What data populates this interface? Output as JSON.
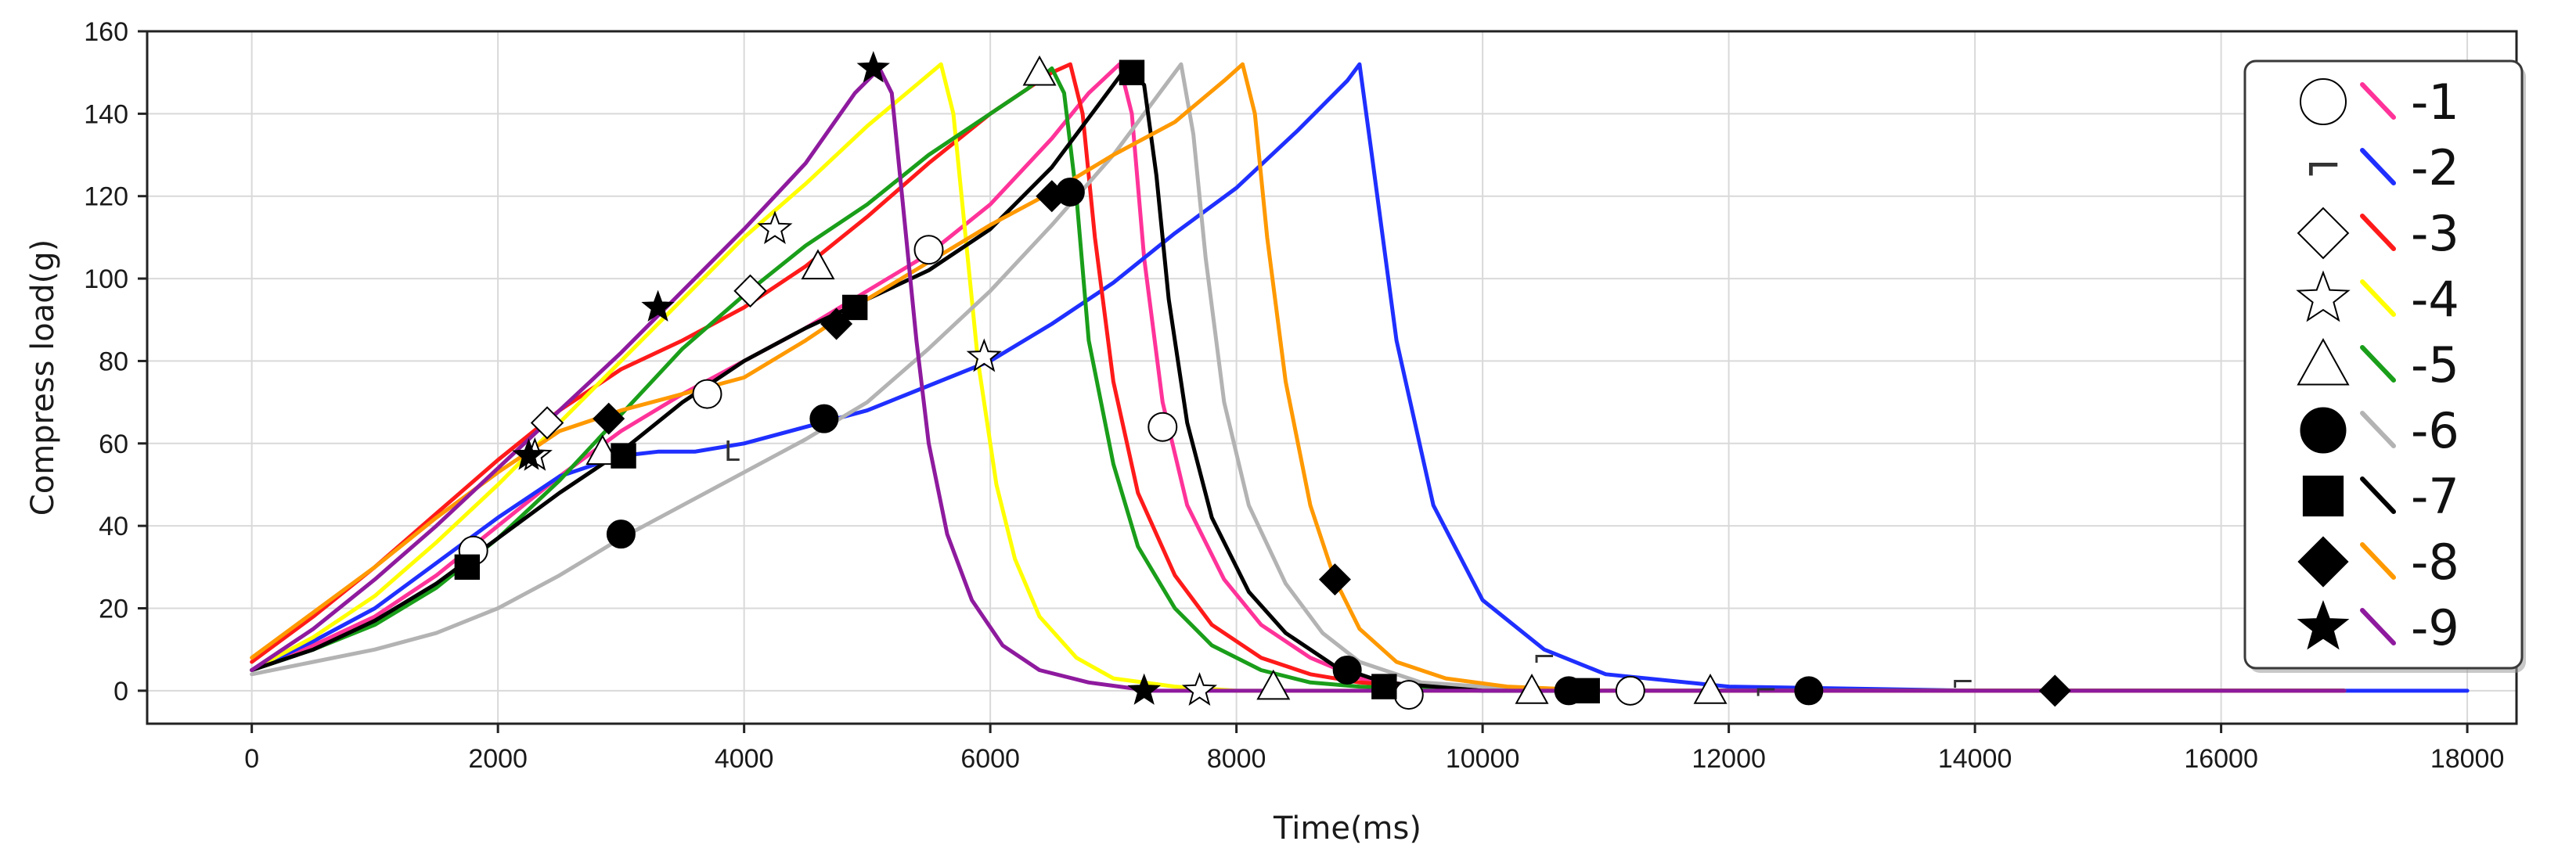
{
  "chart_data": {
    "type": "line",
    "title": "",
    "xlabel": "Time(ms)",
    "ylabel": "Compress load(g)",
    "xlim": [
      -850,
      18400
    ],
    "ylim": [
      -8,
      160
    ],
    "xticks": [
      0,
      2000,
      4000,
      6000,
      8000,
      10000,
      12000,
      14000,
      16000,
      18000
    ],
    "yticks": [
      0,
      20,
      40,
      60,
      80,
      100,
      120,
      140,
      160
    ],
    "grid": true,
    "legend_position": "top-right",
    "series": [
      {
        "name": "-1",
        "color": "#ff3399",
        "marker": "circle-open",
        "x": [
          0,
          500,
          1000,
          1500,
          2000,
          2500,
          3000,
          3500,
          4000,
          4500,
          5000,
          5500,
          6000,
          6500,
          6800,
          7050,
          7150,
          7250,
          7400,
          7600,
          7900,
          8200,
          8600,
          9000,
          9500,
          10000,
          11000,
          12000,
          14000,
          16000,
          17000
        ],
        "y": [
          5,
          11,
          18,
          28,
          40,
          52,
          63,
          72,
          80,
          88,
          97,
          106,
          118,
          134,
          145,
          152,
          140,
          105,
          70,
          45,
          27,
          16,
          8,
          3,
          1,
          0,
          0,
          0,
          0,
          0,
          0
        ],
        "marker_x": [
          1800,
          3700,
          5500,
          7400,
          9400,
          11200
        ],
        "marker_y": [
          34,
          72,
          107,
          64,
          -1,
          0
        ]
      },
      {
        "name": "-2",
        "color": "#1f2fff",
        "marker": "dash",
        "x": [
          0,
          500,
          1000,
          1500,
          2000,
          2500,
          3000,
          3300,
          3600,
          4000,
          4500,
          5000,
          5500,
          6000,
          6500,
          7000,
          7500,
          8000,
          8500,
          8900,
          9000,
          9100,
          9300,
          9600,
          10000,
          10500,
          11000,
          12000,
          14000,
          16000,
          18000
        ],
        "y": [
          5,
          12,
          20,
          31,
          42,
          52,
          57,
          58,
          58,
          60,
          64,
          68,
          74,
          80,
          89,
          99,
          111,
          122,
          136,
          148,
          152,
          130,
          85,
          45,
          22,
          10,
          4,
          1,
          0,
          0,
          0
        ],
        "marker_x": [
          3900,
          10500,
          12300,
          13900
        ],
        "marker_y": [
          58,
          8,
          0,
          2
        ],
        "marker_labels": [
          "L",
          "⌐",
          "⌐",
          "⌐"
        ]
      },
      {
        "name": "-3",
        "color": "#ff1a1a",
        "marker": "diamond-open",
        "x": [
          0,
          500,
          1000,
          1500,
          2000,
          2500,
          3000,
          3500,
          4000,
          4500,
          5000,
          5500,
          6000,
          6300,
          6500,
          6650,
          6750,
          6850,
          7000,
          7200,
          7500,
          7800,
          8200,
          8600,
          9000,
          10000,
          11000,
          12000,
          14000,
          16000,
          17000
        ],
        "y": [
          7,
          18,
          30,
          43,
          56,
          68,
          78,
          85,
          93,
          103,
          115,
          128,
          140,
          146,
          150,
          152,
          140,
          110,
          75,
          48,
          28,
          16,
          8,
          4,
          2,
          0,
          0,
          0,
          0,
          0,
          0
        ],
        "marker_x": [
          2400,
          4050
        ],
        "marker_y": [
          65,
          97
        ]
      },
      {
        "name": "-4",
        "color": "#ffff00",
        "marker": "star-open",
        "x": [
          0,
          500,
          1000,
          1500,
          2000,
          2500,
          3000,
          3500,
          4000,
          4500,
          5000,
          5400,
          5600,
          5700,
          5800,
          5900,
          6050,
          6200,
          6400,
          6700,
          7000,
          7500,
          8000,
          8500,
          9000,
          10000,
          11000,
          12000,
          14000,
          16000,
          17000
        ],
        "y": [
          5,
          13,
          23,
          36,
          50,
          65,
          80,
          95,
          110,
          123,
          137,
          147,
          152,
          140,
          110,
          80,
          50,
          32,
          18,
          8,
          3,
          1,
          0,
          0,
          0,
          0,
          0,
          0,
          0,
          0,
          0
        ],
        "marker_x": [
          2300,
          4250,
          5950,
          7700
        ],
        "marker_y": [
          57,
          112,
          81,
          0
        ]
      },
      {
        "name": "-5",
        "color": "#1a9e1a",
        "marker": "triangle-open",
        "x": [
          0,
          500,
          1000,
          1500,
          2000,
          2500,
          3000,
          3500,
          4000,
          4500,
          5000,
          5500,
          6000,
          6300,
          6500,
          6600,
          6700,
          6800,
          7000,
          7200,
          7500,
          7800,
          8200,
          8600,
          9000,
          10000,
          11000,
          12000,
          14000,
          16000,
          17000
        ],
        "y": [
          5,
          10,
          16,
          25,
          37,
          51,
          67,
          83,
          96,
          108,
          118,
          130,
          140,
          146,
          151,
          145,
          120,
          85,
          55,
          35,
          20,
          11,
          5,
          2,
          1,
          0,
          0,
          0,
          0,
          0,
          0
        ],
        "marker_x": [
          2850,
          4600,
          6400,
          8300,
          10400,
          11850
        ],
        "marker_y": [
          58,
          103,
          150,
          1,
          0,
          0
        ]
      },
      {
        "name": "-6",
        "color": "#b3b3b3",
        "marker": "circle",
        "x": [
          0,
          500,
          1000,
          1500,
          2000,
          2500,
          3000,
          3500,
          4000,
          4500,
          5000,
          5500,
          6000,
          6500,
          7000,
          7400,
          7550,
          7650,
          7750,
          7900,
          8100,
          8400,
          8700,
          9000,
          9500,
          10000,
          11000,
          12000,
          14000,
          16000,
          17000
        ],
        "y": [
          4,
          7,
          10,
          14,
          20,
          28,
          37,
          45,
          53,
          61,
          70,
          83,
          97,
          113,
          130,
          146,
          152,
          135,
          105,
          70,
          45,
          26,
          14,
          7,
          2,
          1,
          0,
          0,
          0,
          0,
          0
        ],
        "marker_x": [
          3000,
          4650,
          6650,
          8900,
          10700,
          12650
        ],
        "marker_y": [
          38,
          66,
          121,
          5,
          0,
          0
        ]
      },
      {
        "name": "-7",
        "color": "#000000",
        "marker": "square",
        "x": [
          0,
          500,
          1000,
          1500,
          2000,
          2500,
          3000,
          3500,
          4000,
          4500,
          5000,
          5500,
          6000,
          6500,
          6900,
          7100,
          7250,
          7350,
          7450,
          7600,
          7800,
          8100,
          8400,
          8800,
          9200,
          10000,
          11000,
          12000,
          14000,
          16000,
          17000
        ],
        "y": [
          5,
          10,
          17,
          26,
          37,
          48,
          58,
          70,
          80,
          88,
          95,
          102,
          112,
          127,
          143,
          151,
          147,
          125,
          95,
          65,
          42,
          24,
          14,
          6,
          2,
          0,
          0,
          0,
          0,
          0,
          0
        ],
        "marker_x": [
          1750,
          3020,
          4900,
          7150,
          9200,
          10850
        ],
        "marker_y": [
          30,
          57,
          93,
          150,
          1,
          0
        ]
      },
      {
        "name": "-8",
        "color": "#ff9900",
        "marker": "diamond",
        "x": [
          0,
          500,
          1000,
          1500,
          2000,
          2500,
          3000,
          3500,
          4000,
          4500,
          5000,
          5500,
          6000,
          6500,
          7000,
          7500,
          7900,
          8050,
          8150,
          8250,
          8400,
          8600,
          8800,
          9000,
          9300,
          9700,
          10200,
          11000,
          12000,
          14000,
          16000,
          17000
        ],
        "y": [
          8,
          19,
          30,
          42,
          53,
          63,
          68,
          72,
          76,
          85,
          95,
          104,
          113,
          121,
          130,
          138,
          148,
          152,
          140,
          110,
          75,
          45,
          27,
          15,
          7,
          3,
          1,
          0,
          0,
          0,
          0,
          0
        ],
        "marker_x": [
          2900,
          4750,
          6500,
          8800,
          14650
        ],
        "marker_y": [
          66,
          89,
          120,
          27,
          0
        ]
      },
      {
        "name": "-9",
        "color": "#8e1a9e",
        "marker": "star",
        "x": [
          0,
          500,
          1000,
          1500,
          2000,
          2500,
          3000,
          3500,
          4000,
          4500,
          4900,
          5100,
          5200,
          5300,
          5400,
          5500,
          5650,
          5850,
          6100,
          6400,
          6800,
          7300,
          8000,
          9000,
          10000,
          12000,
          14000,
          16000,
          17000
        ],
        "y": [
          5,
          15,
          27,
          40,
          54,
          68,
          82,
          97,
          112,
          128,
          145,
          151,
          145,
          115,
          85,
          60,
          38,
          22,
          11,
          5,
          2,
          0,
          0,
          0,
          0,
          0,
          0,
          0,
          0
        ],
        "marker_x": [
          2250,
          3300,
          5050,
          7250
        ],
        "marker_y": [
          57,
          93,
          151,
          0
        ]
      }
    ]
  }
}
